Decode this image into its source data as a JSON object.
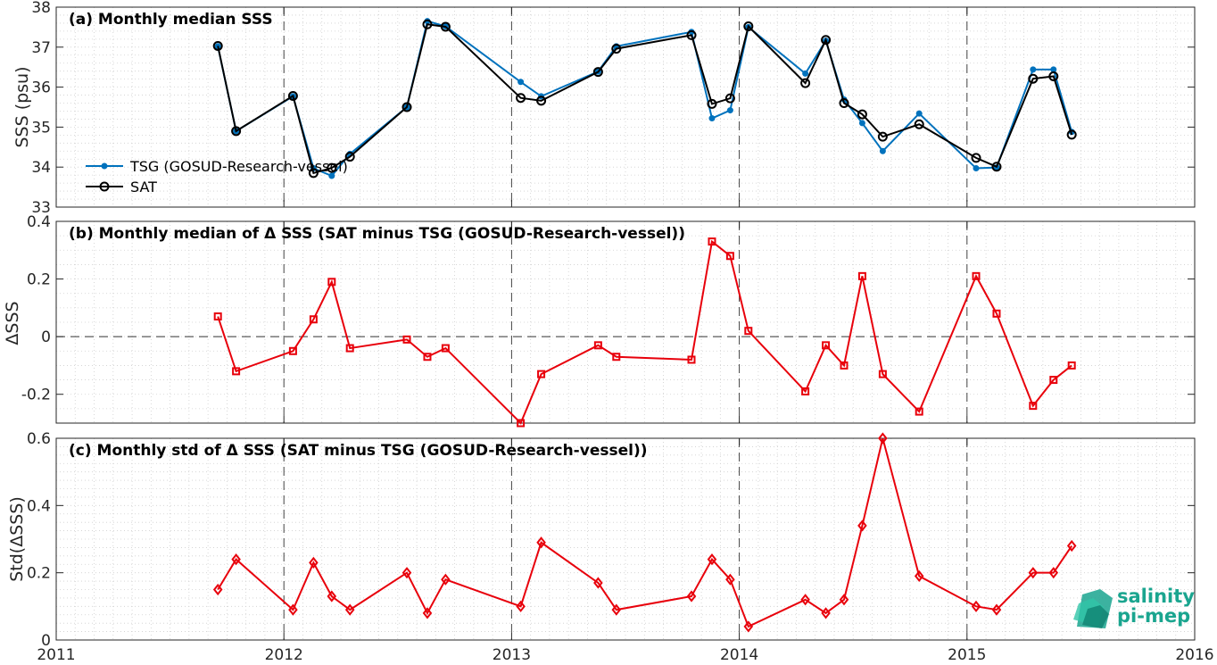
{
  "colors": {
    "tsg": "#0072BD",
    "sat": "#000000",
    "delta": "#E8000B",
    "logo": "#1aa58f"
  },
  "chart_data": [
    {
      "id": "a",
      "type": "line",
      "title": "(a) Monthly median SSS",
      "ylabel": "SSS (psu)",
      "ylim": [
        33,
        38
      ],
      "yticks": [
        33,
        34,
        35,
        36,
        37,
        38
      ],
      "xlim": [
        2011,
        2016
      ],
      "grid": "dotted minor",
      "legend_position": "lower-left",
      "series": [
        {
          "name": "TSG (GOSUD-Research-vessel)",
          "marker": "dot",
          "x": [
            2011.71,
            2011.79,
            2012.04,
            2012.13,
            2012.21,
            2012.29,
            2012.54,
            2012.63,
            2012.71,
            2013.04,
            2013.13,
            2013.38,
            2013.46,
            2013.79,
            2013.88,
            2013.96,
            2014.04,
            2014.29,
            2014.38,
            2014.46,
            2014.54,
            2014.63,
            2014.79,
            2015.04,
            2015.13,
            2015.29,
            2015.38,
            2015.46
          ],
          "y": [
            37.02,
            34.9,
            35.77,
            33.97,
            33.78,
            34.33,
            35.5,
            37.65,
            37.52,
            36.13,
            35.77,
            36.39,
            37.02,
            37.38,
            35.22,
            35.42,
            37.5,
            36.34,
            37.16,
            35.69,
            35.1,
            34.4,
            35.34,
            33.97,
            33.99,
            36.44,
            36.44,
            34.88
          ]
        },
        {
          "name": "SAT",
          "marker": "circle",
          "x": [
            2011.71,
            2011.79,
            2012.04,
            2012.13,
            2012.21,
            2012.29,
            2012.54,
            2012.63,
            2012.71,
            2013.04,
            2013.13,
            2013.38,
            2013.46,
            2013.79,
            2013.88,
            2013.96,
            2014.04,
            2014.29,
            2014.38,
            2014.46,
            2014.54,
            2014.63,
            2014.79,
            2015.04,
            2015.13,
            2015.29,
            2015.38,
            2015.46
          ],
          "y": [
            37.03,
            34.9,
            35.78,
            33.85,
            33.98,
            34.26,
            35.5,
            37.57,
            37.51,
            35.73,
            35.66,
            36.38,
            36.96,
            37.3,
            35.58,
            35.72,
            37.52,
            36.1,
            37.18,
            35.6,
            35.32,
            34.76,
            35.07,
            34.23,
            34.01,
            36.21,
            36.27,
            34.81
          ]
        }
      ]
    },
    {
      "id": "b",
      "type": "line",
      "title": "(b) Monthly median of Δ SSS (SAT minus TSG (GOSUD-Research-vessel))",
      "ylabel": "ΔSSS",
      "ylim": [
        -0.3,
        0.4
      ],
      "yticks": [
        -0.2,
        0,
        0.2,
        0.4
      ],
      "ytick_labels": [
        "-0.2",
        "0",
        "0.2",
        "0.4"
      ],
      "xlim": [
        2011,
        2016
      ],
      "zero_line": "dashed",
      "series": [
        {
          "marker": "square",
          "x": [
            2011.71,
            2011.79,
            2012.04,
            2012.13,
            2012.21,
            2012.29,
            2012.54,
            2012.63,
            2012.71,
            2013.04,
            2013.13,
            2013.38,
            2013.46,
            2013.79,
            2013.88,
            2013.96,
            2014.04,
            2014.29,
            2014.38,
            2014.46,
            2014.54,
            2014.63,
            2014.79,
            2015.04,
            2015.13,
            2015.29,
            2015.38,
            2015.46
          ],
          "y": [
            0.07,
            -0.12,
            -0.05,
            0.06,
            0.19,
            -0.04,
            -0.01,
            -0.07,
            -0.04,
            -0.3,
            -0.13,
            -0.03,
            -0.07,
            -0.08,
            0.33,
            0.28,
            0.02,
            -0.19,
            -0.03,
            -0.1,
            0.21,
            -0.13,
            -0.26,
            0.21,
            0.08,
            -0.24,
            -0.15,
            -0.1
          ]
        }
      ]
    },
    {
      "id": "c",
      "type": "line",
      "title": "(c) Monthly std of Δ SSS (SAT minus TSG (GOSUD-Research-vessel))",
      "ylabel": "Std(ΔSSS)",
      "ylim": [
        0,
        0.6
      ],
      "yticks": [
        0,
        0.2,
        0.4,
        0.6
      ],
      "ytick_labels": [
        "0",
        "0.2",
        "0.4",
        "0.6"
      ],
      "xlim": [
        2011,
        2016
      ],
      "xticks": [
        2011,
        2012,
        2013,
        2014,
        2015,
        2016
      ],
      "xtick_labels": [
        "2011",
        "2012",
        "2013",
        "2014",
        "2015",
        "2016"
      ],
      "series": [
        {
          "marker": "diamond",
          "x": [
            2011.71,
            2011.79,
            2012.04,
            2012.13,
            2012.21,
            2012.29,
            2012.54,
            2012.63,
            2012.71,
            2013.04,
            2013.13,
            2013.38,
            2013.46,
            2013.79,
            2013.88,
            2013.96,
            2014.04,
            2014.29,
            2014.38,
            2014.46,
            2014.54,
            2014.63,
            2014.79,
            2015.04,
            2015.13,
            2015.29,
            2015.38,
            2015.46
          ],
          "y": [
            0.15,
            0.24,
            0.09,
            0.23,
            0.13,
            0.09,
            0.2,
            0.08,
            0.18,
            0.1,
            0.29,
            0.17,
            0.09,
            0.13,
            0.24,
            0.18,
            0.04,
            0.12,
            0.08,
            0.12,
            0.34,
            0.6,
            0.19,
            0.1,
            0.09,
            0.2,
            0.2,
            0.28
          ]
        }
      ]
    }
  ],
  "logo": {
    "line1": "salinity",
    "line2": "pi-mep"
  }
}
